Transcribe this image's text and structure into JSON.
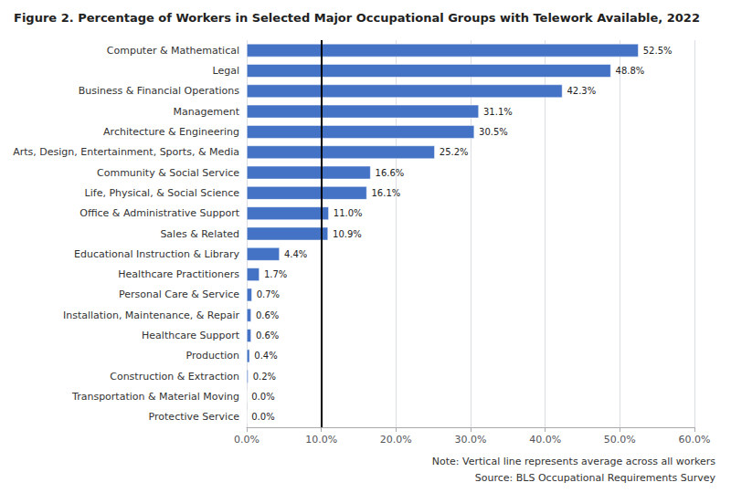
{
  "chart_data": {
    "type": "bar",
    "orientation": "horizontal",
    "title": "Figure 2. Percentage of Workers in Selected Major Occupational Groups with Telework Available, 2022",
    "categories": [
      "Protective Service",
      "Transportation & Material Moving",
      "Construction & Extraction",
      "Production",
      "Healthcare Support",
      "Installation, Maintenance, & Repair",
      "Personal Care & Service",
      "Healthcare Practitioners",
      "Educational Instruction & Library",
      "Sales & Related",
      "Office & Administrative Support",
      "Life, Physical, & Social Science",
      "Community & Social Service",
      "Arts, Design, Entertainment, Sports, & Media",
      "Architecture & Engineering",
      "Management",
      "Business & Financial Operations",
      "Legal",
      "Computer & Mathematical"
    ],
    "values": [
      0.0,
      0.0,
      0.2,
      0.4,
      0.6,
      0.6,
      0.7,
      1.7,
      4.4,
      10.9,
      11.0,
      16.1,
      16.6,
      25.2,
      30.5,
      31.1,
      42.3,
      48.8,
      52.5
    ],
    "value_labels": [
      "0.0%",
      "0.0%",
      "0.2%",
      "0.4%",
      "0.6%",
      "0.6%",
      "0.7%",
      "1.7%",
      "4.4%",
      "10.9%",
      "11.0%",
      "16.1%",
      "16.6%",
      "25.2%",
      "30.5%",
      "31.1%",
      "42.3%",
      "48.8%",
      "52.5%"
    ],
    "data_labels": true,
    "color": "#4472C4",
    "xlim": [
      0,
      60
    ],
    "xticks": [
      {
        "value": 0,
        "label": "0.0%"
      },
      {
        "value": 10,
        "label": "10.0%"
      },
      {
        "value": 20,
        "label": "20.0%"
      },
      {
        "value": 30,
        "label": "30.0%"
      },
      {
        "value": 40,
        "label": "40.0%"
      },
      {
        "value": 50,
        "label": "50.0%"
      },
      {
        "value": 60,
        "label": "60.0%"
      }
    ],
    "vline_x": 10.0,
    "grid": true,
    "notes": [
      "Note: Vertical line represents average across all workers",
      "Source: BLS Occupational Requirements Survey"
    ]
  }
}
